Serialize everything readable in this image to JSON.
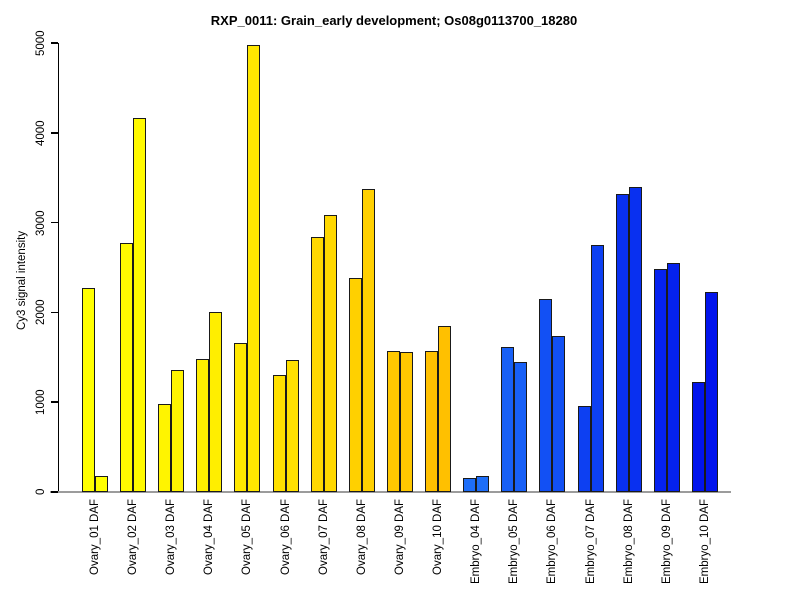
{
  "figure": {
    "title": "RXP_0011: Grain_early development; Os08g0113700_18280",
    "ylabel": "Cy3 signal intensity"
  },
  "chart_data": {
    "type": "bar",
    "title": "RXP_0011: Grain_early development; Os08g0113700_18280",
    "xlabel": "",
    "ylabel": "Cy3 signal intensity",
    "ylim": [
      0,
      5000
    ],
    "yticks": [
      0,
      1000,
      2000,
      3000,
      4000,
      5000
    ],
    "grid": false,
    "legend": null,
    "bars_per_group": 2,
    "categories": [
      "Ovary_01 DAF",
      "Ovary_02 DAF",
      "Ovary_03 DAF",
      "Ovary_04 DAF",
      "Ovary_05 DAF",
      "Ovary_06 DAF",
      "Ovary_07 DAF",
      "Ovary_08 DAF",
      "Ovary_09 DAF",
      "Ovary_10 DAF",
      "Embryo_04 DAF",
      "Embryo_05 DAF",
      "Embryo_06 DAF",
      "Embryo_07 DAF",
      "Embryo_08 DAF",
      "Embryo_09 DAF",
      "Embryo_10 DAF"
    ],
    "groups": [
      {
        "label": "Ovary_01 DAF",
        "color": "#FFFF00",
        "values": [
          2270,
          180
        ]
      },
      {
        "label": "Ovary_02 DAF",
        "color": "#FFFA00",
        "values": [
          2770,
          4160
        ]
      },
      {
        "label": "Ovary_03 DAF",
        "color": "#FFF400",
        "values": [
          980,
          1360
        ]
      },
      {
        "label": "Ovary_04 DAF",
        "color": "#FFEE00",
        "values": [
          1480,
          2000
        ]
      },
      {
        "label": "Ovary_05 DAF",
        "color": "#FFE700",
        "values": [
          1660,
          4980
        ]
      },
      {
        "label": "Ovary_06 DAF",
        "color": "#FFE000",
        "values": [
          1300,
          1470
        ]
      },
      {
        "label": "Ovary_07 DAF",
        "color": "#FFD800",
        "values": [
          2840,
          3080
        ]
      },
      {
        "label": "Ovary_08 DAF",
        "color": "#FFD000",
        "values": [
          2380,
          3370
        ]
      },
      {
        "label": "Ovary_09 DAF",
        "color": "#FFC800",
        "values": [
          1570,
          1560
        ]
      },
      {
        "label": "Ovary_10 DAF",
        "color": "#FFC000",
        "values": [
          1570,
          1850
        ]
      },
      {
        "label": "Embryo_04 DAF",
        "color": "#1E6EF8",
        "values": [
          160,
          180
        ]
      },
      {
        "label": "Embryo_05 DAF",
        "color": "#1860F6",
        "values": [
          1620,
          1450
        ]
      },
      {
        "label": "Embryo_06 DAF",
        "color": "#1250F4",
        "values": [
          2150,
          1740
        ]
      },
      {
        "label": "Embryo_07 DAF",
        "color": "#0D40F2",
        "values": [
          960,
          2750
        ]
      },
      {
        "label": "Embryo_08 DAF",
        "color": "#0930F0",
        "values": [
          3320,
          3400
        ]
      },
      {
        "label": "Embryo_09 DAF",
        "color": "#0522EE",
        "values": [
          2480,
          2550
        ]
      },
      {
        "label": "Embryo_10 DAF",
        "color": "#0214EC",
        "values": [
          1230,
          2230
        ]
      }
    ],
    "bar_border_color": "#1a1a1a",
    "axis_color": "#000000",
    "baseline_color": "#9c9c9c"
  }
}
